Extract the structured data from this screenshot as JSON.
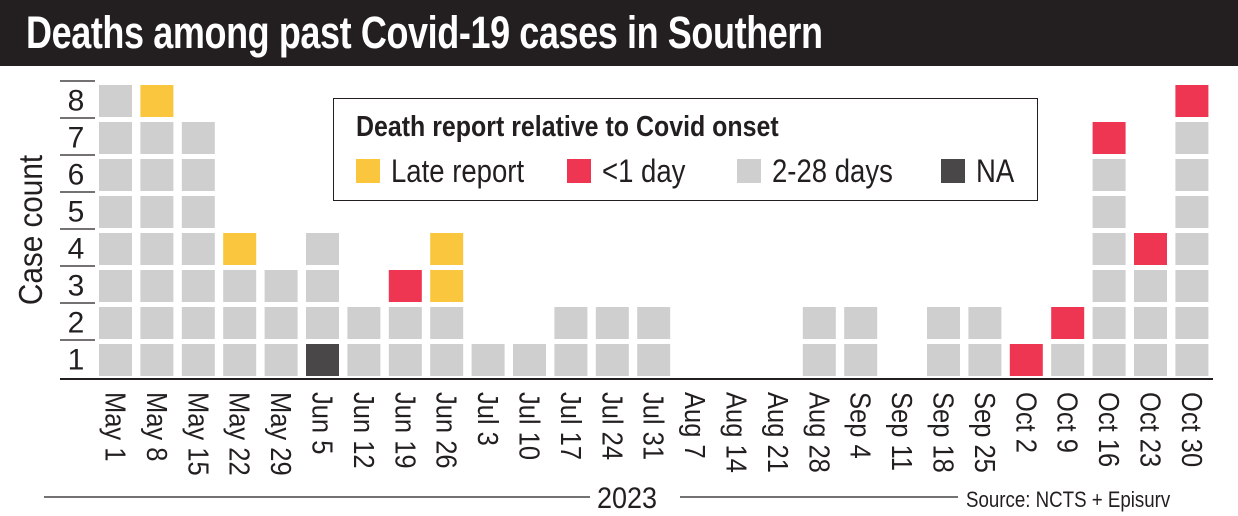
{
  "title": "Deaths among past Covid-19 cases in Southern",
  "legend": {
    "title": "Death report relative to Covid onset",
    "items": [
      {
        "label": "Late report",
        "color": "#f9c63d",
        "key": "late"
      },
      {
        "label": "<1 day",
        "color": "#ee3552",
        "key": "lt1"
      },
      {
        "label": "2-28 days",
        "color": "#cfcfcf",
        "key": "d2_28"
      },
      {
        "label": "NA",
        "color": "#4a4748",
        "key": "na"
      }
    ]
  },
  "footer": {
    "year": "2023",
    "source": "Source: NCTS + Episurv"
  },
  "chart_data": {
    "type": "bar",
    "stacked": true,
    "ylabel": "Case count",
    "xlabel": "2023",
    "ylim": [
      0,
      8
    ],
    "y_ticks": [
      "1",
      "2",
      "3",
      "4",
      "5",
      "6",
      "7",
      "8"
    ],
    "categories": [
      "May 1",
      "May 8",
      "May 15",
      "May 22",
      "May 29",
      "Jun 5",
      "Jun 12",
      "Jun 19",
      "Jun 26",
      "Jul 3",
      "Jul 10",
      "Jul 17",
      "Jul 24",
      "Jul 31",
      "Aug 7",
      "Aug 14",
      "Aug 21",
      "Aug 28",
      "Sep 4",
      "Sep 11",
      "Sep 18",
      "Sep 25",
      "Oct 2",
      "Oct 9",
      "Oct 16",
      "Oct 23",
      "Oct 30"
    ],
    "series": [
      {
        "name": "NA",
        "key": "na",
        "color": "#4a4748",
        "values": [
          0,
          0,
          0,
          0,
          0,
          1,
          0,
          0,
          0,
          0,
          0,
          0,
          0,
          0,
          0,
          0,
          0,
          0,
          0,
          0,
          0,
          0,
          0,
          0,
          0,
          0,
          0
        ]
      },
      {
        "name": "2-28 days",
        "key": "d2_28",
        "color": "#cfcfcf",
        "values": [
          8,
          7,
          7,
          3,
          3,
          3,
          2,
          2,
          2,
          1,
          1,
          2,
          2,
          2,
          0,
          0,
          0,
          2,
          2,
          0,
          2,
          2,
          0,
          1,
          6,
          3,
          7
        ]
      },
      {
        "name": "<1 day",
        "key": "lt1",
        "color": "#ee3552",
        "values": [
          0,
          0,
          0,
          0,
          0,
          0,
          0,
          1,
          0,
          0,
          0,
          0,
          0,
          0,
          0,
          0,
          0,
          0,
          0,
          0,
          0,
          0,
          1,
          1,
          1,
          1,
          1
        ]
      },
      {
        "name": "Late report",
        "key": "late",
        "color": "#f9c63d",
        "values": [
          0,
          1,
          0,
          1,
          0,
          0,
          0,
          0,
          2,
          0,
          0,
          0,
          0,
          0,
          0,
          0,
          0,
          0,
          0,
          0,
          0,
          0,
          0,
          0,
          0,
          0,
          0
        ]
      }
    ],
    "grid": false,
    "legend_position": "top-center"
  }
}
